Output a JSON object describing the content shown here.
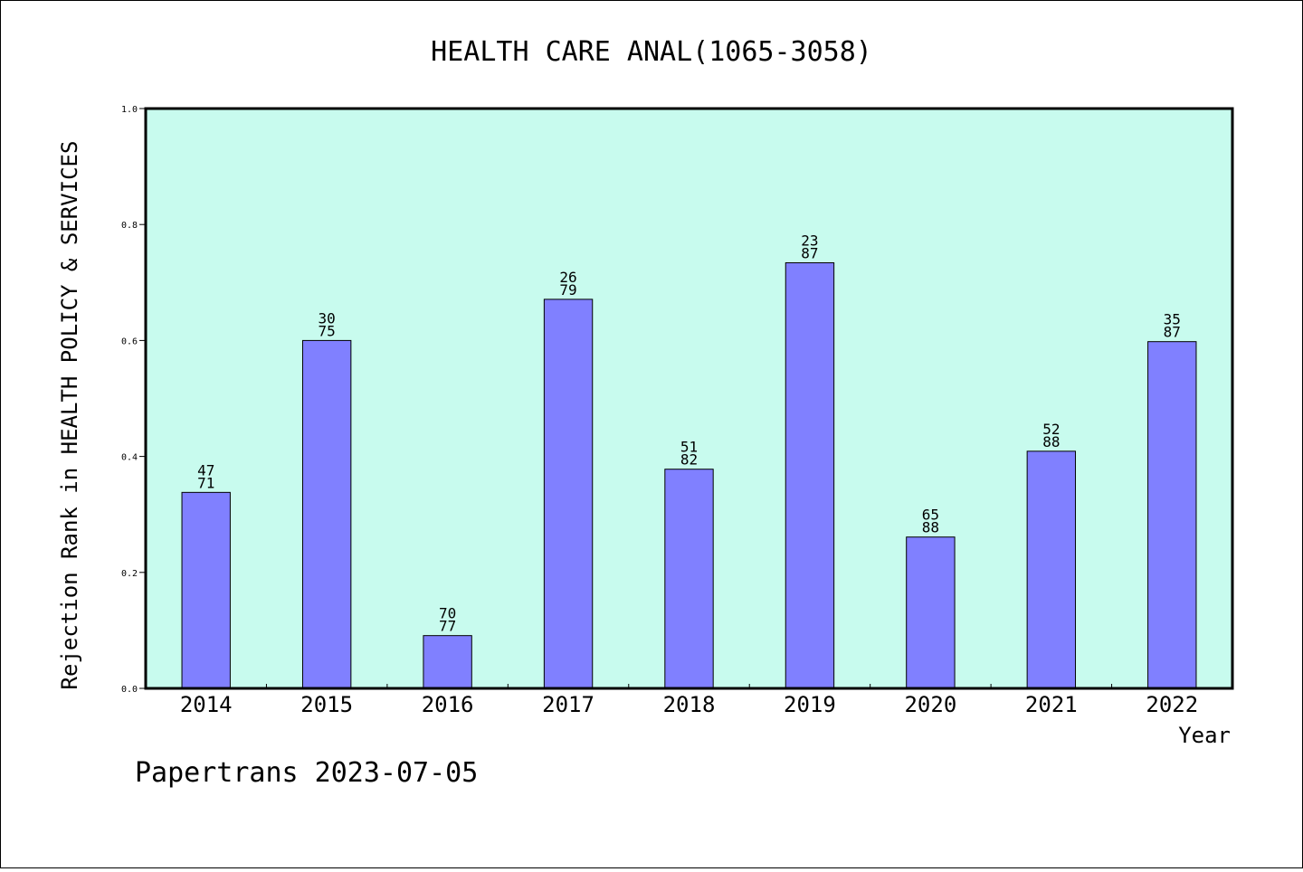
{
  "chart_data": {
    "type": "bar",
    "title": "HEALTH CARE ANAL(1065-3058)",
    "xlabel": "Year",
    "ylabel": "Rejection Rank in HEALTH POLICY & SERVICES",
    "ylim": [
      0,
      1.0
    ],
    "yticks": [
      "0.0",
      "0.2",
      "0.4",
      "0.6",
      "0.8",
      "1.0"
    ],
    "categories": [
      "2014",
      "2015",
      "2016",
      "2017",
      "2018",
      "2019",
      "2020",
      "2021",
      "2022"
    ],
    "values": [
      0.338,
      0.6,
      0.091,
      0.671,
      0.378,
      0.734,
      0.261,
      0.409,
      0.598
    ],
    "labels_top": [
      "47",
      "30",
      "70",
      "26",
      "51",
      "23",
      "65",
      "52",
      "35"
    ],
    "labels_bottom": [
      "71",
      "75",
      "77",
      "79",
      "82",
      "87",
      "88",
      "88",
      "87"
    ],
    "grid": false,
    "colors": {
      "plot_bg": "#c8fbee",
      "bar": "#8080ff",
      "bar_edge": "#000000"
    }
  },
  "footer": "Papertrans 2023-07-05"
}
